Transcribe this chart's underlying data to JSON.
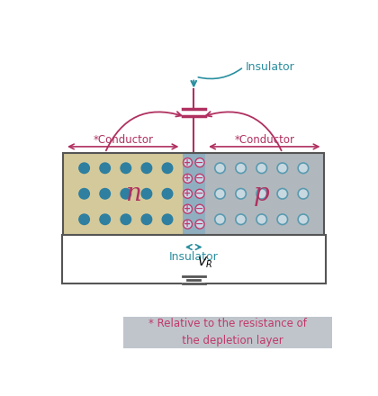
{
  "bg_color": "#ffffff",
  "n_region_color": "#d4c99a",
  "p_region_color": "#b0b8bd",
  "depletion_color": "#8fafc0",
  "dot_color": "#2e7fa0",
  "circle_edge_color": "#5a9ab0",
  "circle_fill_color": "#c8d8e0",
  "charge_circle_fill": "#c8d8e8",
  "plus_color": "#c0396a",
  "minus_color": "#c0396a",
  "arrow_color": "#b03060",
  "teal_color": "#2a8fa0",
  "label_color": "#c0396a",
  "footnote_bg": "#c0c5cc",
  "footnote_color": "#c0396a",
  "line_color": "#555555",
  "conductor_label": "*Conductor",
  "insulator_label": "Insulator",
  "insulator_bottom_label": "Insulator",
  "n_label": "n",
  "p_label": "p",
  "vr_label": "$V_R$",
  "footnote_text": "* Relative to the resistance of\n   the depletion layer"
}
